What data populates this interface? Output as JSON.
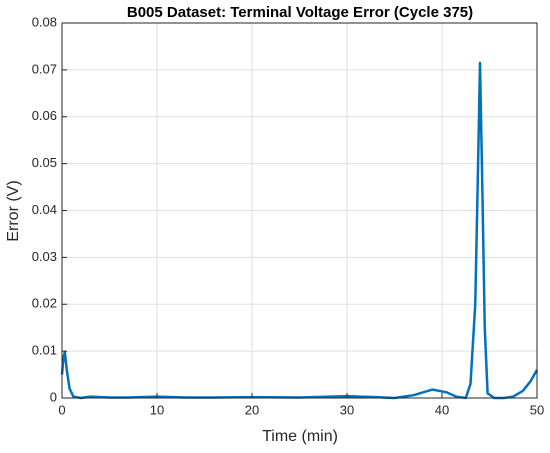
{
  "chart_data": {
    "type": "line",
    "title": "B005 Dataset: Terminal Voltage Error (Cycle 375)",
    "x_label": "Time (min)",
    "y_label": "Error (V)",
    "x": [
      0,
      0.15,
      0.3,
      0.5,
      0.8,
      1.2,
      2,
      3,
      5,
      7,
      10,
      13,
      16,
      20,
      25,
      30,
      33,
      35,
      37,
      39,
      40.5,
      41.5,
      42.5,
      43,
      43.5,
      43.8,
      44,
      44.2,
      44.5,
      44.8,
      45.5,
      46.5,
      47.5,
      48.5,
      49.3,
      50
    ],
    "series": [
      {
        "color": "#0072bd",
        "values": [
          0.005,
          0.0085,
          0.0098,
          0.006,
          0.002,
          0.0003,
          0,
          0.0003,
          0.0001,
          0.0001,
          0.0003,
          0.0001,
          0.0001,
          0.0002,
          0.0001,
          0.0004,
          0.0002,
          0,
          0.0006,
          0.0018,
          0.0012,
          0.0003,
          0,
          0.003,
          0.02,
          0.05,
          0.0715,
          0.05,
          0.015,
          0.001,
          0,
          0,
          0.0003,
          0.0015,
          0.0035,
          0.006
        ]
      }
    ],
    "xlim": [
      0,
      50
    ],
    "xticks": [
      0,
      10,
      20,
      30,
      40,
      50
    ],
    "ylim": [
      0,
      0.08
    ],
    "yticks": [
      0,
      0.01,
      0.02,
      0.03,
      0.04,
      0.05,
      0.06,
      0.07,
      0.08
    ],
    "grid": true
  }
}
